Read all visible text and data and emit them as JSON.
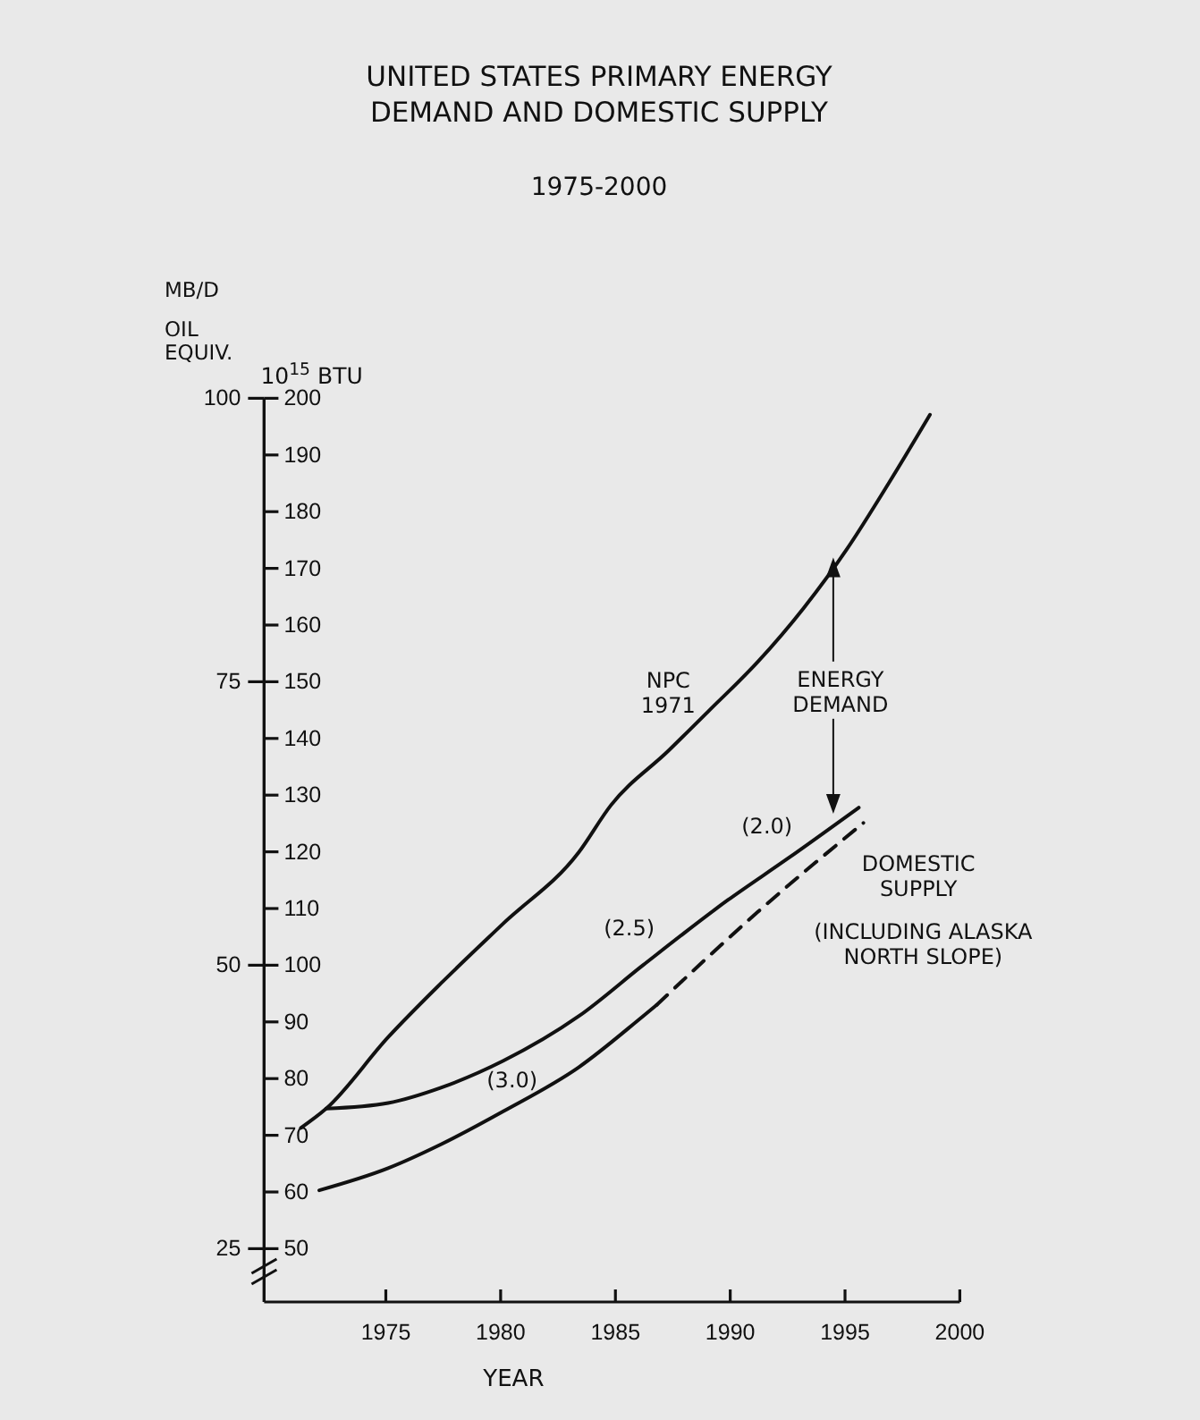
{
  "chart_data": {
    "type": "line",
    "title": "UNITED STATES PRIMARY ENERGY\nDEMAND AND DOMESTIC SUPPLY",
    "subtitle": "1975-2000",
    "xlabel": "YEAR",
    "ylabel": "10$^{15}$ BTU",
    "y2label": "MB/D\nOIL\nEQUIV.",
    "xlim": [
      1969.7,
      2000
    ],
    "xticks": [
      1975,
      1980,
      1985,
      1990,
      1995,
      2000
    ],
    "ylim": [
      40.6,
      200
    ],
    "yticks": [
      50,
      60,
      70,
      80,
      90,
      100,
      110,
      120,
      130,
      140,
      150,
      160,
      170,
      180,
      190,
      200
    ],
    "y2lim": [
      20.3,
      100
    ],
    "y2ticks": [
      25,
      50,
      75,
      100
    ],
    "series": [
      {
        "color": "#111111",
        "line_style": "solid",
        "x": [
          1971.3,
          1972.4,
          1975.1,
          1977.4,
          1980.1,
          1983.4,
          1984.8,
          1987.3,
          1989.1,
          1991.2,
          1993.2,
          1995.1,
          1996.9,
          1998.7
        ],
        "values": [
          71.3,
          74.7,
          87.3,
          96.8,
          107.3,
          119.9,
          128.2,
          137.8,
          145,
          153.5,
          163,
          173.5,
          185,
          197.1
        ]
      },
      {
        "color": "#111111",
        "line_style": "solid",
        "x": [
          1972.4,
          1975.1,
          1977.4,
          1980.1,
          1983.4,
          1986.2,
          1989.9,
          1992.5,
          1995.6
        ],
        "values": [
          74.7,
          75.7,
          78.4,
          83.1,
          91,
          100,
          111.5,
          118.8,
          127.8
        ]
      },
      {
        "color": "#111111",
        "line_style": "solid",
        "x": [
          1972.1,
          1975.1,
          1977.4,
          1980.1,
          1983.4,
          1986.2,
          1986.8
        ],
        "values": [
          60.3,
          64.2,
          68.4,
          74.2,
          82,
          91,
          93
        ]
      },
      {
        "color": "#111111",
        "line_style": "dashed",
        "x": [
          1986.8,
          1991.2,
          1995.8
        ],
        "values": [
          93,
          109.4,
          125.1
        ]
      }
    ],
    "annotations": [
      "NPC\n1971",
      {
        "text": "ENERGY\nDEMAND",
        "x": 1994.8,
        "y": 171.9
      },
      "(2.0)",
      "(2.5)",
      "(3.0)",
      "DOMESTIC\nSUPPLY",
      "(INCLUDING ALASKA\nNORTH SLOPE)"
    ]
  }
}
